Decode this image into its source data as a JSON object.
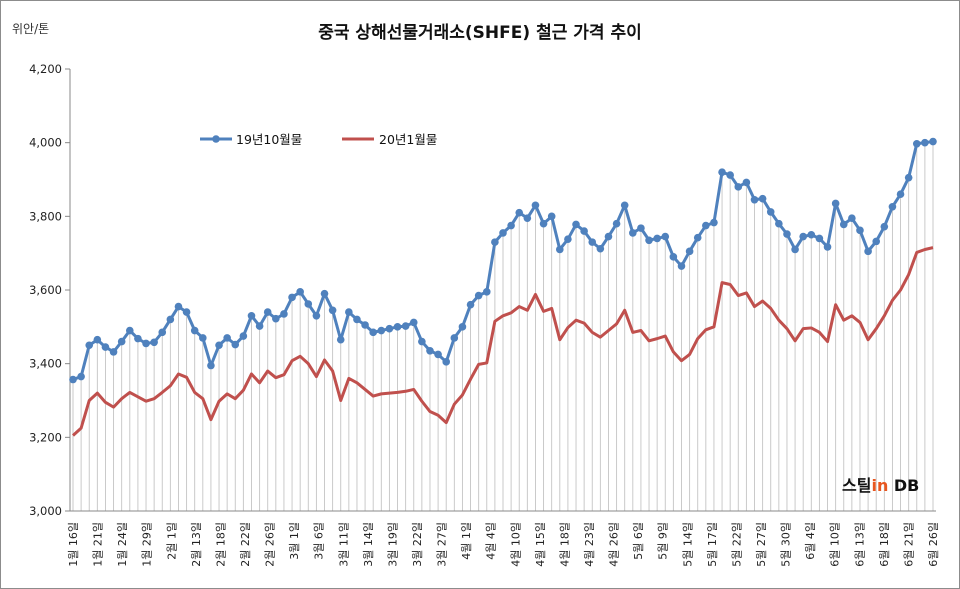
{
  "chart_data": {
    "type": "line",
    "title": "중국 상해선물거래소(SHFE)  철근 가격 추이",
    "unit_label": "위안/톤",
    "ylim": [
      3000,
      4200
    ],
    "yticks": [
      3000,
      3200,
      3400,
      3600,
      3800,
      4000,
      4200
    ],
    "ytick_labels": [
      "3,000",
      "3,200",
      "3,400",
      "3,600",
      "3,800",
      "4,000",
      "4,200"
    ],
    "legend_position": "top-left",
    "grid": false,
    "drop_lines": true,
    "x_labels": [
      "1월 16일",
      "1월 21일",
      "1월 24일",
      "1월 29일",
      "2월 1일",
      "2월 13일",
      "2월 18일",
      "2월 22일",
      "2월 26일",
      "3월 1일",
      "3월 6일",
      "3월 11일",
      "3월 14일",
      "3월 19일",
      "3월 22일",
      "3월 27일",
      "4월 1일",
      "4월 4일",
      "4월 10일",
      "4월 15일",
      "4월 18일",
      "4월 23일",
      "4월 26일",
      "5월 6일",
      "5월 9일",
      "5월 14일",
      "5월 17일",
      "5월 22일",
      "5월 27일",
      "5월 30일",
      "6월 4일",
      "6월 10일",
      "6월 13일",
      "6월 18일",
      "6월 21일",
      "6월 26일"
    ],
    "series": [
      {
        "name": "19년10월물",
        "color": "#4f81bd",
        "marker": "circle",
        "values": [
          3357,
          3365,
          3450,
          3465,
          3445,
          3432,
          3460,
          3490,
          3468,
          3455,
          3458,
          3485,
          3520,
          3555,
          3540,
          3490,
          3470,
          3395,
          3450,
          3470,
          3452,
          3475,
          3530,
          3502,
          3540,
          3522,
          3535,
          3580,
          3595,
          3562,
          3530,
          3590,
          3545,
          3465,
          3540,
          3520,
          3505,
          3485,
          3490,
          3495,
          3500,
          3502,
          3512,
          3460,
          3435,
          3425,
          3405,
          3470,
          3500,
          3560,
          3585,
          3595,
          3730,
          3755,
          3775,
          3810,
          3795,
          3830,
          3780,
          3800,
          3710,
          3738,
          3778,
          3760,
          3730,
          3712,
          3745,
          3780,
          3830,
          3755,
          3768,
          3735,
          3740,
          3745,
          3690,
          3665,
          3705,
          3742,
          3775,
          3783,
          3920,
          3912,
          3880,
          3892,
          3845,
          3848,
          3812,
          3780,
          3752,
          3710,
          3745,
          3750,
          3740,
          3717,
          3835,
          3778,
          3795,
          3762,
          3705,
          3732,
          3772,
          3826,
          3860,
          3905,
          3997,
          4000,
          4003
        ]
      },
      {
        "name": "20년1월물",
        "color": "#c0504d",
        "marker": "none",
        "values": [
          3205,
          3225,
          3300,
          3320,
          3295,
          3282,
          3305,
          3322,
          3310,
          3298,
          3305,
          3322,
          3340,
          3372,
          3363,
          3322,
          3305,
          3248,
          3298,
          3318,
          3305,
          3328,
          3372,
          3348,
          3380,
          3362,
          3370,
          3408,
          3420,
          3400,
          3365,
          3410,
          3380,
          3300,
          3360,
          3348,
          3330,
          3312,
          3318,
          3320,
          3322,
          3325,
          3330,
          3298,
          3270,
          3260,
          3240,
          3290,
          3315,
          3358,
          3398,
          3402,
          3515,
          3530,
          3538,
          3555,
          3545,
          3588,
          3542,
          3550,
          3465,
          3498,
          3518,
          3510,
          3485,
          3472,
          3490,
          3508,
          3545,
          3485,
          3490,
          3462,
          3468,
          3475,
          3432,
          3408,
          3425,
          3468,
          3492,
          3500,
          3620,
          3615,
          3585,
          3592,
          3555,
          3570,
          3550,
          3518,
          3495,
          3462,
          3495,
          3497,
          3485,
          3460,
          3560,
          3518,
          3530,
          3512,
          3465,
          3495,
          3530,
          3572,
          3600,
          3642,
          3702,
          3710,
          3715
        ]
      }
    ]
  },
  "brand": {
    "part1": "스틸",
    "part2": "in",
    "part3": " DB"
  }
}
